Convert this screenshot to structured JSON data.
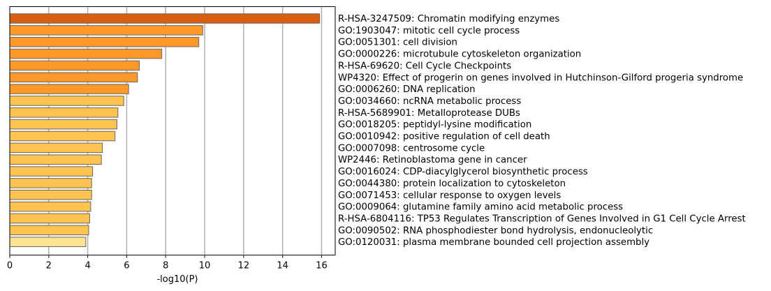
{
  "chart_data": {
    "type": "bar",
    "orientation": "horizontal",
    "xlabel": "-log10(P)",
    "xlim": [
      0,
      16.7
    ],
    "xticks": [
      "0",
      "2",
      "4",
      "6",
      "8",
      "10",
      "12",
      "14",
      "16"
    ],
    "grid": "vertical",
    "label_side": "right",
    "categories": [
      "R-HSA-3247509: Chromatin modifying enzymes",
      "GO:1903047: mitotic cell cycle process",
      "GO:0051301: cell division",
      "GO:0000226: microtubule cytoskeleton organization",
      "R-HSA-69620: Cell Cycle Checkpoints",
      "WP4320: Effect of progerin on genes involved in Hutchinson-Gilford progeria syndrome",
      "GO:0006260: DNA replication",
      "GO:0034660: ncRNA metabolic process",
      "R-HSA-5689901: Metalloprotease DUBs",
      "GO:0018205: peptidyl-lysine modification",
      "GO:0010942: positive regulation of cell death",
      "GO:0007098: centrosome cycle",
      "WP2446: Retinoblastoma gene in cancer",
      "GO:0016024: CDP-diacylglycerol biosynthetic process",
      "GO:0044380: protein localization to cytoskeleton",
      "GO:0071453: cellular response to oxygen levels",
      "GO:0009064: glutamine family amino acid metabolic process",
      "R-HSA-6804116: TP53 Regulates Transcription of Genes Involved in G1 Cell Cycle Arrest",
      "GO:0090502: RNA phosphodiester bond hydrolysis, endonucleolytic",
      "GO:0120031: plasma membrane bounded cell projection assembly"
    ],
    "values": [
      15.9,
      9.9,
      9.7,
      7.8,
      6.65,
      6.55,
      6.1,
      5.85,
      5.55,
      5.5,
      5.4,
      4.75,
      4.7,
      4.25,
      4.2,
      4.2,
      4.15,
      4.1,
      4.05,
      3.9
    ],
    "colors": [
      "#d95f0e",
      "#fe9929",
      "#fe9929",
      "#fe9929",
      "#fe9929",
      "#fe9929",
      "#fe9929",
      "#fec44f",
      "#fec44f",
      "#fec44f",
      "#fec44f",
      "#fec44f",
      "#fec44f",
      "#fec44f",
      "#fec44f",
      "#fec44f",
      "#fec44f",
      "#fec44f",
      "#fec44f",
      "#fee391"
    ],
    "bar_edge_color": "#666666",
    "grid_color": "#b0b0b0"
  }
}
